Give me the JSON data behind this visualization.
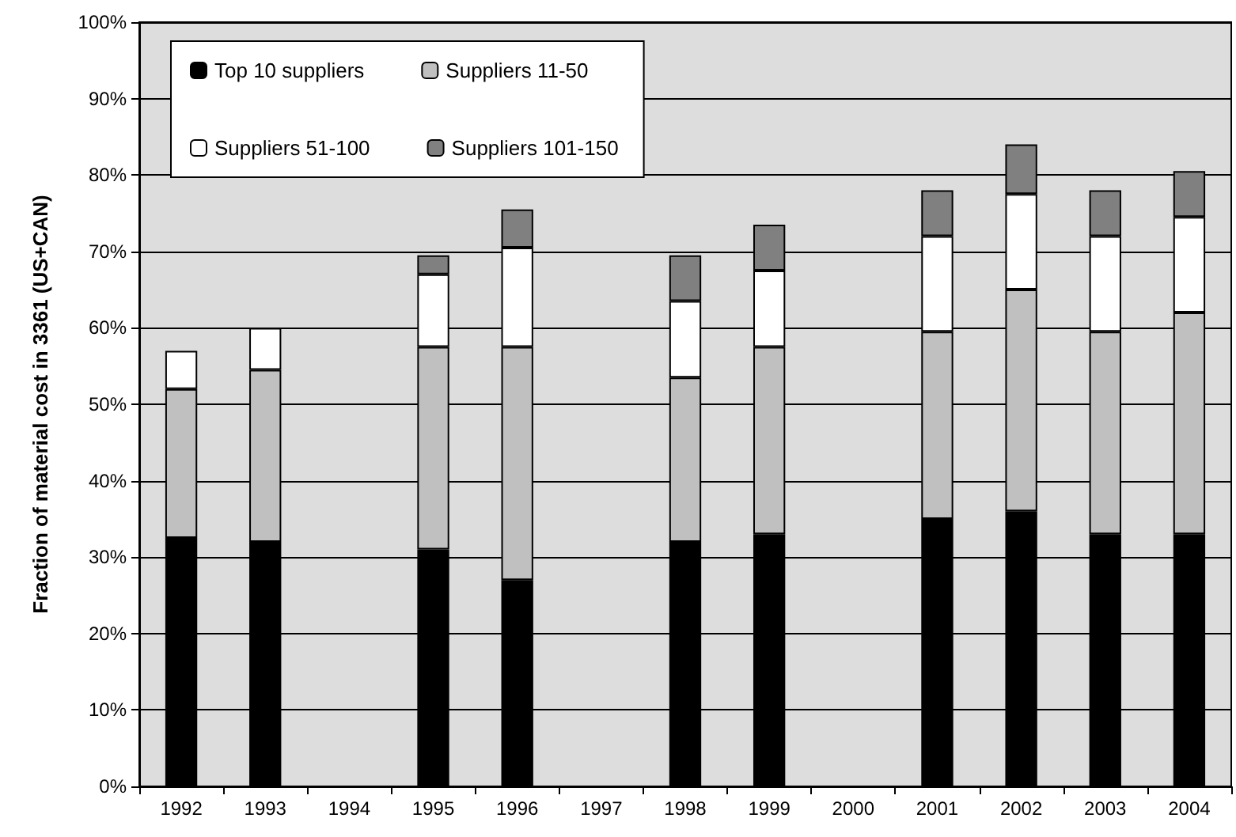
{
  "chart_data": {
    "type": "bar",
    "stacked": true,
    "ylabel": "Fraction of material cost in 3361 (US+CAN)",
    "categories": [
      "1992",
      "1993",
      "1994",
      "1995",
      "1996",
      "1997",
      "1998",
      "1999",
      "2000",
      "2001",
      "2002",
      "2003",
      "2004"
    ],
    "series": [
      {
        "name": "Top 10 suppliers",
        "color": "#000000",
        "values": [
          32.5,
          32,
          null,
          31,
          27,
          null,
          32,
          33,
          null,
          35,
          36,
          33,
          33
        ]
      },
      {
        "name": "Suppliers 11-50",
        "color": "#c0c0c0",
        "values": [
          19.5,
          22.5,
          null,
          26.5,
          30.5,
          null,
          21.5,
          24.5,
          null,
          24.5,
          29,
          26.5,
          29
        ]
      },
      {
        "name": "Suppliers 51-100",
        "color": "#ffffff",
        "values": [
          5,
          5.5,
          null,
          9.5,
          13,
          null,
          10,
          10,
          null,
          12.5,
          12.5,
          12.5,
          12.5
        ]
      },
      {
        "name": "Suppliers 101-150",
        "color": "#808080",
        "values": [
          null,
          null,
          null,
          2.5,
          5,
          null,
          6,
          6,
          null,
          6,
          6.5,
          6,
          6
        ]
      }
    ],
    "ylim": [
      0,
      100
    ],
    "yticks": [
      {
        "value": 0,
        "label": "0%"
      },
      {
        "value": 10,
        "label": "10%"
      },
      {
        "value": 20,
        "label": "20%"
      },
      {
        "value": 30,
        "label": "30%"
      },
      {
        "value": 40,
        "label": "40%"
      },
      {
        "value": 50,
        "label": "50%"
      },
      {
        "value": 60,
        "label": "60%"
      },
      {
        "value": 70,
        "label": "70%"
      },
      {
        "value": 80,
        "label": "80%"
      },
      {
        "value": 90,
        "label": "90%"
      },
      {
        "value": 100,
        "label": "100%"
      }
    ],
    "grid": "y",
    "legend": "top left"
  }
}
